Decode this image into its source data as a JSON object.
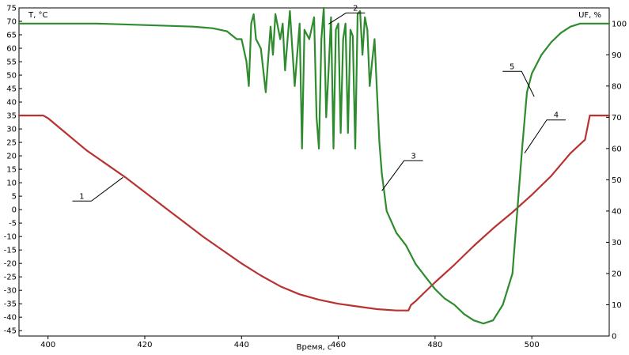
{
  "chart_data": {
    "type": "line",
    "title": "",
    "xlabel": "Время, с",
    "ylabel_left": "T, °C",
    "ylabel_right": "UF, %",
    "xlim": [
      394,
      516
    ],
    "ylim_left": [
      -47,
      75
    ],
    "ylim_right": [
      0,
      105
    ],
    "x_ticks": [
      400,
      420,
      440,
      460,
      480,
      500
    ],
    "y_left_ticks": [
      -45,
      -40,
      -35,
      -30,
      -25,
      -20,
      -15,
      -10,
      -5,
      0,
      5,
      10,
      15,
      20,
      25,
      30,
      35,
      40,
      45,
      50,
      55,
      60,
      65,
      70,
      75
    ],
    "y_right_ticks": [
      0,
      10,
      20,
      30,
      40,
      50,
      60,
      70,
      80,
      90,
      100
    ],
    "grid": false,
    "series": [
      {
        "color": "#b83232",
        "axis": "left",
        "x": [
          394,
          399,
          400,
          404,
          408,
          412,
          416,
          420,
          424,
          428,
          432,
          436,
          440,
          444,
          448,
          452,
          456,
          460,
          464,
          468,
          472,
          474.5,
          475,
          476,
          478,
          480,
          484,
          488,
          492,
          496,
          500,
          504,
          508,
          511,
          512,
          516
        ],
        "y": [
          35,
          35,
          34,
          28,
          22,
          17,
          12,
          6.5,
          1,
          -4.5,
          -10,
          -15,
          -20,
          -24.5,
          -28.5,
          -31.5,
          -33.5,
          -35,
          -36,
          -37,
          -37.5,
          -37.5,
          -35.5,
          -34,
          -30.5,
          -27,
          -20.5,
          -13.5,
          -7,
          -1,
          5.5,
          12.5,
          21,
          26,
          35,
          35
        ]
      },
      {
        "color": "#2e8b2e",
        "axis": "right",
        "x": [
          394,
          410,
          420,
          430,
          434,
          437,
          439,
          440,
          441,
          441.5,
          442,
          442.5,
          443,
          444,
          445,
          446,
          446.5,
          447,
          448,
          448.5,
          449,
          450,
          451,
          452,
          452.5,
          453,
          454,
          455,
          455.5,
          456,
          456.5,
          457,
          457.5,
          458,
          458.5,
          459,
          459.5,
          460,
          460.5,
          461,
          461.5,
          462,
          462.5,
          463,
          463.5,
          464,
          464.5,
          465,
          465.5,
          466,
          466.5,
          467,
          467.5,
          468,
          468.5,
          469,
          470,
          472,
          474,
          476,
          478,
          480,
          482,
          484,
          486,
          488,
          490,
          492,
          494,
          496,
          497,
          498,
          499,
          500,
          502,
          504,
          506,
          508,
          510,
          512,
          516
        ],
        "y": [
          100,
          100,
          99.5,
          99,
          98.5,
          97.5,
          95,
          95,
          88,
          80,
          100,
          103,
          95,
          92,
          78,
          99,
          90,
          103,
          95,
          100,
          85,
          104,
          80,
          100,
          60,
          98,
          95,
          102,
          70,
          60,
          95,
          105,
          70,
          85,
          102,
          60,
          98,
          100,
          65,
          95,
          100,
          65,
          98,
          96,
          60,
          103,
          104,
          90,
          102,
          98,
          80,
          88,
          95,
          78,
          62,
          52,
          40,
          33,
          29,
          23,
          19,
          15,
          12,
          10,
          7,
          5,
          4,
          5,
          10,
          20,
          40,
          60,
          78,
          84,
          90,
          94,
          97,
          99,
          100,
          100,
          100
        ]
      }
    ],
    "annotations": [
      {
        "label": "1",
        "x": 415.5,
        "axis": "left",
        "y": 12
      },
      {
        "label": "2",
        "x": 458,
        "axis": "left",
        "y": 69
      },
      {
        "label": "3",
        "x": 469,
        "axis": "left",
        "y": 7
      },
      {
        "label": "4",
        "x": 498.5,
        "axis": "left",
        "y": 21
      },
      {
        "label": "5",
        "x": 500.5,
        "axis": "left",
        "y": 42
      }
    ]
  }
}
